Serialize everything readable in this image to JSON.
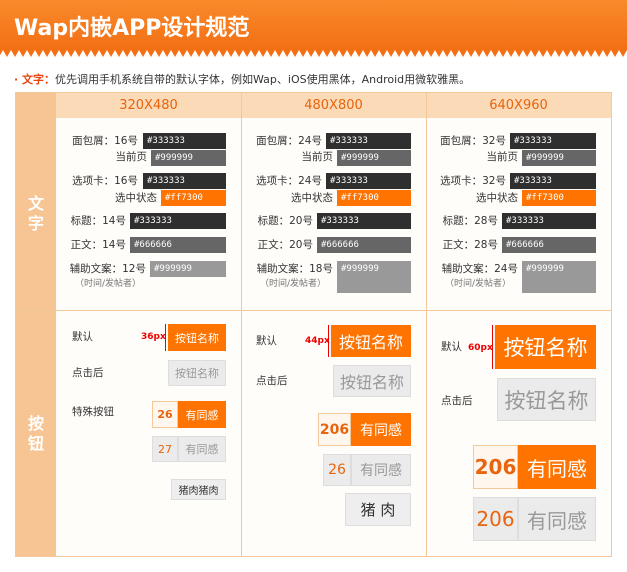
{
  "header": {
    "title": "Wap内嵌APP设计规范"
  },
  "intro": {
    "label": "· 文字：",
    "text": "优先调用手机系统自带的默认字体，例如Wap、iOS使用黑体，Android用微软雅黑。"
  },
  "table": {
    "columns": [
      "320X480",
      "480X800",
      "640X960"
    ],
    "sections": [
      "文字",
      "按钮"
    ],
    "text_specs": [
      [
        {
          "label": "面包屑：16号",
          "swatch": "#333333"
        },
        {
          "label": "当前页",
          "swatch": "#999999"
        },
        {
          "label": "选项卡：16号",
          "swatch": "#333333"
        },
        {
          "label": "选中状态",
          "swatch": "#ff7300"
        },
        {
          "label": "标题：14号",
          "swatch": "#333333"
        },
        {
          "label": "正文：14号",
          "swatch": "#666666"
        },
        {
          "label": "辅助文案：12号",
          "swatch": "#999999"
        },
        {
          "label": "（时间/发帖者）"
        }
      ],
      [
        {
          "label": "面包屑：24号",
          "swatch": "#333333"
        },
        {
          "label": "当前页",
          "swatch": "#999999"
        },
        {
          "label": "选项卡：24号",
          "swatch": "#333333"
        },
        {
          "label": "选中状态",
          "swatch": "#ff7300"
        },
        {
          "label": "标题：20号",
          "swatch": "#333333"
        },
        {
          "label": "正文：20号",
          "swatch": "#666666"
        },
        {
          "label": "辅助文案：18号",
          "swatch": "#999999"
        },
        {
          "label": "（时间/发帖者）"
        }
      ],
      [
        {
          "label": "面包屑：32号",
          "swatch": "#333333"
        },
        {
          "label": "当前页",
          "swatch": "#999999"
        },
        {
          "label": "选项卡：32号",
          "swatch": "#333333"
        },
        {
          "label": "选中状态",
          "swatch": "#ff7300"
        },
        {
          "label": "标题：28号",
          "swatch": "#333333"
        },
        {
          "label": "正文：28号",
          "swatch": "#666666"
        },
        {
          "label": "辅助文案：24号",
          "swatch": "#999999"
        },
        {
          "label": "（时间/发帖者）"
        }
      ]
    ],
    "buttons": [
      {
        "default": "默认",
        "size": "36px",
        "button": "按钮名称",
        "pressed": "点击后",
        "special": "特殊按钮",
        "combo_active": [
          "26",
          "有同感"
        ],
        "combo_inactive": [
          "27",
          "有同感"
        ],
        "tag": "猪肉猪肉"
      },
      {
        "default": "默认",
        "size": "44px",
        "button": "按钮名称",
        "pressed": "点击后",
        "combo_active": [
          "206",
          "有同感"
        ],
        "combo_inactive": [
          "26",
          "有同感"
        ],
        "tag": "猪 肉"
      },
      {
        "default": "默认",
        "size": "60px",
        "button": "按钮名称",
        "pressed": "点击后",
        "combo_active": [
          "206",
          "有同感"
        ],
        "combo_inactive": [
          "206",
          "有同感"
        ]
      }
    ]
  }
}
